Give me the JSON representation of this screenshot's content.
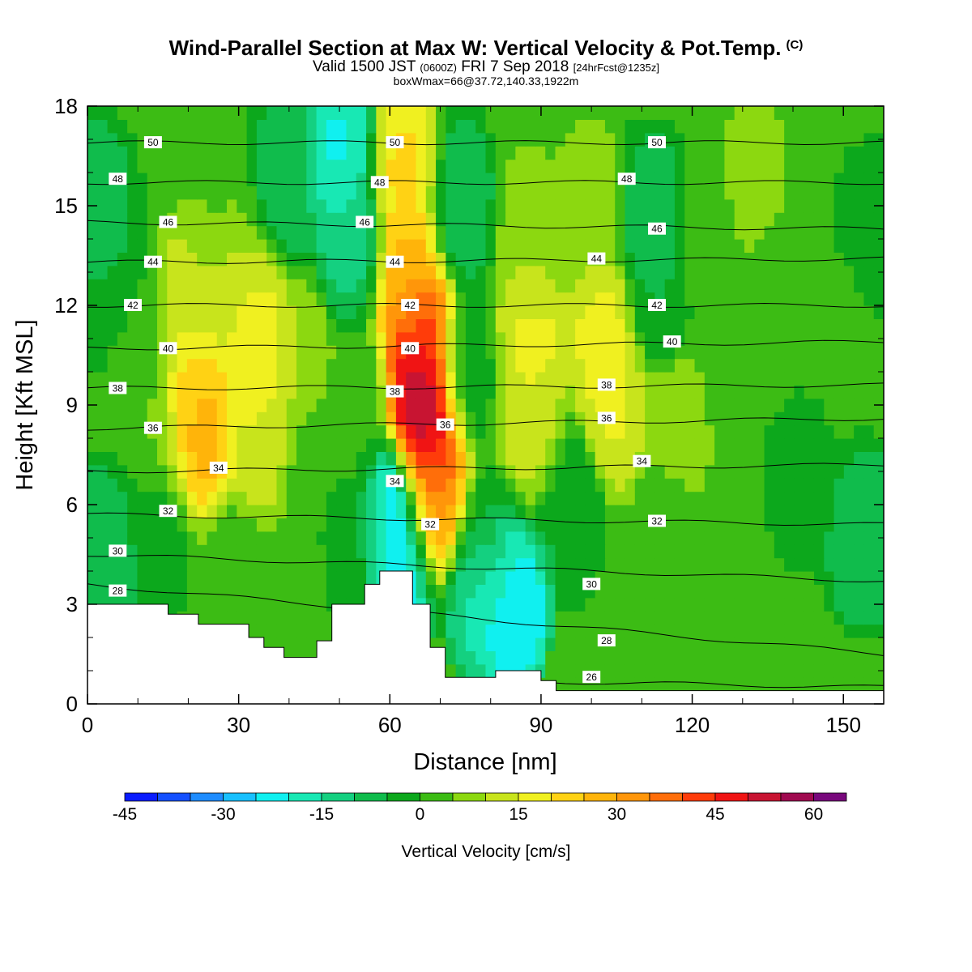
{
  "header": {
    "title": "Wind-Parallel Section at Max W: Vertical Velocity & Pot.Temp.",
    "title_mark": "(C)",
    "valid_prefix": "Valid 1500 JST",
    "valid_z": "(0600Z)",
    "valid_date": "FRI 7 Sep 2018",
    "valid_fcst": "[24hrFcst@1235z]",
    "box_info": "boxWmax=66@37.72,140.33,1922m"
  },
  "chart_data": {
    "type": "heatmap",
    "title": "Wind-Parallel Section at Max W: Vertical Velocity & Pot.Temp.",
    "xlabel": "Distance [nm]",
    "ylabel": "Height [Kft MSL]",
    "xlim": [
      0,
      158
    ],
    "ylim": [
      0,
      18
    ],
    "x_ticks": [
      0,
      30,
      60,
      90,
      120,
      150
    ],
    "y_ticks": [
      0,
      3,
      6,
      9,
      12,
      15,
      18
    ],
    "colorbar": {
      "label": "Vertical Velocity [cm/s]",
      "tick_values": [
        -45,
        -30,
        -15,
        0,
        15,
        30,
        45,
        60
      ],
      "tick_labels": [
        "-45",
        "-30",
        "-15",
        "0",
        "15",
        "30",
        "45",
        "60"
      ],
      "bin_edges": [
        -45,
        -40,
        -35,
        -30,
        -25,
        -20,
        -15,
        -10,
        -5,
        0,
        5,
        10,
        15,
        20,
        25,
        30,
        35,
        40,
        45,
        50,
        55,
        60,
        65
      ],
      "colors": [
        "#0a1cff",
        "#1450ff",
        "#1e8cff",
        "#18c0ff",
        "#10f0f0",
        "#18e8b4",
        "#14d080",
        "#10bc4c",
        "#0ca81c",
        "#3cbc14",
        "#8cd810",
        "#c8e41c",
        "#f0f020",
        "#ffd214",
        "#ffb40a",
        "#ff960a",
        "#ff6e0a",
        "#ff3c0a",
        "#f01414",
        "#c81432",
        "#a00a50",
        "#78087c",
        "#5a0a9c"
      ]
    },
    "vertical_velocity_cells": [
      {
        "x": 2,
        "y": 15,
        "w": -8
      },
      {
        "x": 5,
        "y": 13,
        "w": -5
      },
      {
        "x": 10,
        "y": 11,
        "w": 2
      },
      {
        "x": 14,
        "y": 8,
        "w": 5
      },
      {
        "x": 20,
        "y": 12,
        "w": 14
      },
      {
        "x": 21,
        "y": 9,
        "w": 24
      },
      {
        "x": 22,
        "y": 8,
        "w": 30
      },
      {
        "x": 14,
        "y": 5.5,
        "w": -3
      },
      {
        "x": 3,
        "y": 4.5,
        "w": -10
      },
      {
        "x": 30,
        "y": 12,
        "w": 14
      },
      {
        "x": 34,
        "y": 10.5,
        "w": 21
      },
      {
        "x": 35,
        "y": 8,
        "w": 14
      },
      {
        "x": 26,
        "y": 15,
        "w": 5
      },
      {
        "x": 28,
        "y": 4,
        "w": 3
      },
      {
        "x": 40,
        "y": 16,
        "w": -9
      },
      {
        "x": 42,
        "y": 10.5,
        "w": 10
      },
      {
        "x": 45,
        "y": 7,
        "w": 0
      },
      {
        "x": 50,
        "y": 16.5,
        "w": -22
      },
      {
        "x": 52,
        "y": 14,
        "w": -12
      },
      {
        "x": 53,
        "y": 9,
        "w": 3
      },
      {
        "x": 55,
        "y": 5,
        "w": -2
      },
      {
        "x": 63,
        "y": 16,
        "w": 22
      },
      {
        "x": 64,
        "y": 13,
        "w": 28
      },
      {
        "x": 66,
        "y": 11,
        "w": 46
      },
      {
        "x": 67,
        "y": 9,
        "w": 63
      },
      {
        "x": 68,
        "y": 7,
        "w": 46
      },
      {
        "x": 69,
        "y": 6,
        "w": 30
      },
      {
        "x": 61,
        "y": 5.5,
        "w": -33
      },
      {
        "x": 62,
        "y": 4.5,
        "w": -24
      },
      {
        "x": 74,
        "y": 15,
        "w": -9
      },
      {
        "x": 75,
        "y": 10,
        "w": -3
      },
      {
        "x": 79,
        "y": 5,
        "w": 0
      },
      {
        "x": 78,
        "y": 3.5,
        "w": -18
      },
      {
        "x": 84,
        "y": 3,
        "w": -28
      },
      {
        "x": 82,
        "y": 4,
        "w": -20
      },
      {
        "x": 88,
        "y": 14,
        "w": 9
      },
      {
        "x": 88,
        "y": 11,
        "w": 17
      },
      {
        "x": 88,
        "y": 8,
        "w": 14
      },
      {
        "x": 95,
        "y": 6,
        "w": -5
      },
      {
        "x": 103,
        "y": 11,
        "w": 18
      },
      {
        "x": 105,
        "y": 9,
        "w": 16
      },
      {
        "x": 100,
        "y": 15,
        "w": 8
      },
      {
        "x": 112,
        "y": 14.5,
        "w": -10
      },
      {
        "x": 113,
        "y": 12,
        "w": -5
      },
      {
        "x": 117,
        "y": 8.5,
        "w": 10
      },
      {
        "x": 115,
        "y": 6,
        "w": 3
      },
      {
        "x": 122,
        "y": 14,
        "w": 3
      },
      {
        "x": 126,
        "y": 10,
        "w": 3
      },
      {
        "x": 132,
        "y": 16,
        "w": 7
      },
      {
        "x": 138,
        "y": 12,
        "w": 3
      },
      {
        "x": 142,
        "y": 7,
        "w": -2
      },
      {
        "x": 150,
        "y": 11,
        "w": 3
      },
      {
        "x": 154,
        "y": 5,
        "w": -10
      },
      {
        "x": 156,
        "y": 14,
        "w": -3
      }
    ],
    "background_w": 1,
    "potential_temperature_contours": [
      {
        "level": 26,
        "label": "26",
        "y_start": 0.9,
        "y_end": 0.5
      },
      {
        "level": 28,
        "label": "28",
        "y_start": 3.6,
        "y_end": 1.5
      },
      {
        "level": 30,
        "label": "30",
        "y_start": 4.5,
        "y_end": 3.7
      },
      {
        "level": 32,
        "label": "32",
        "y_start": 5.7,
        "y_end": 5.4
      },
      {
        "level": 34,
        "label": "34",
        "y_start": 7.0,
        "y_end": 7.2
      },
      {
        "level": 36,
        "label": "36",
        "y_start": 8.3,
        "y_end": 8.6
      },
      {
        "level": 38,
        "label": "38",
        "y_start": 9.5,
        "y_end": 9.6
      },
      {
        "level": 40,
        "label": "40",
        "y_start": 10.7,
        "y_end": 10.9
      },
      {
        "level": 42,
        "label": "42",
        "y_start": 12.0,
        "y_end": 12.0
      },
      {
        "level": 44,
        "label": "44",
        "y_start": 13.3,
        "y_end": 13.4
      },
      {
        "level": 46,
        "label": "46",
        "y_start": 14.5,
        "y_end": 14.3
      },
      {
        "level": 48,
        "label": "48",
        "y_start": 15.7,
        "y_end": 15.7
      },
      {
        "level": 50,
        "label": "50",
        "y_start": 16.9,
        "y_end": 16.9
      }
    ],
    "contour_labels": [
      {
        "text": "50",
        "x": 13,
        "y": 16.9
      },
      {
        "text": "50",
        "x": 61,
        "y": 16.9
      },
      {
        "text": "50",
        "x": 113,
        "y": 16.9
      },
      {
        "text": "48",
        "x": 6,
        "y": 15.8
      },
      {
        "text": "48",
        "x": 58,
        "y": 15.7
      },
      {
        "text": "48",
        "x": 107,
        "y": 15.8
      },
      {
        "text": "46",
        "x": 16,
        "y": 14.5
      },
      {
        "text": "46",
        "x": 55,
        "y": 14.5
      },
      {
        "text": "46",
        "x": 113,
        "y": 14.3
      },
      {
        "text": "44",
        "x": 13,
        "y": 13.3
      },
      {
        "text": "44",
        "x": 61,
        "y": 13.3
      },
      {
        "text": "44",
        "x": 101,
        "y": 13.4
      },
      {
        "text": "42",
        "x": 9,
        "y": 12.0
      },
      {
        "text": "42",
        "x": 64,
        "y": 12.0
      },
      {
        "text": "42",
        "x": 113,
        "y": 12.0
      },
      {
        "text": "40",
        "x": 16,
        "y": 10.7
      },
      {
        "text": "40",
        "x": 64,
        "y": 10.7
      },
      {
        "text": "40",
        "x": 116,
        "y": 10.9
      },
      {
        "text": "38",
        "x": 6,
        "y": 9.5
      },
      {
        "text": "38",
        "x": 61,
        "y": 9.4
      },
      {
        "text": "38",
        "x": 103,
        "y": 9.6
      },
      {
        "text": "36",
        "x": 13,
        "y": 8.3
      },
      {
        "text": "36",
        "x": 71,
        "y": 8.4
      },
      {
        "text": "36",
        "x": 103,
        "y": 8.6
      },
      {
        "text": "34",
        "x": 26,
        "y": 7.1
      },
      {
        "text": "34",
        "x": 61,
        "y": 6.7
      },
      {
        "text": "34",
        "x": 110,
        "y": 7.3
      },
      {
        "text": "32",
        "x": 16,
        "y": 5.8
      },
      {
        "text": "32",
        "x": 68,
        "y": 5.4
      },
      {
        "text": "32",
        "x": 113,
        "y": 5.5
      },
      {
        "text": "30",
        "x": 6,
        "y": 4.6
      },
      {
        "text": "30",
        "x": 100,
        "y": 3.6
      },
      {
        "text": "28",
        "x": 6,
        "y": 3.4
      },
      {
        "text": "28",
        "x": 103,
        "y": 1.9
      },
      {
        "text": "26",
        "x": 100,
        "y": 0.8
      }
    ],
    "terrain": [
      [
        0,
        3.0
      ],
      [
        16,
        3.0
      ],
      [
        16,
        2.7
      ],
      [
        22,
        2.7
      ],
      [
        22,
        2.4
      ],
      [
        32,
        2.4
      ],
      [
        32,
        2.0
      ],
      [
        35,
        2.0
      ],
      [
        35,
        1.7
      ],
      [
        39,
        1.7
      ],
      [
        39,
        1.4
      ],
      [
        45.5,
        1.4
      ],
      [
        45.5,
        1.9
      ],
      [
        48.5,
        1.9
      ],
      [
        48.5,
        3.0
      ],
      [
        55,
        3.0
      ],
      [
        55,
        3.6
      ],
      [
        58,
        3.6
      ],
      [
        58,
        4.0
      ],
      [
        64.5,
        4.0
      ],
      [
        64.5,
        3.0
      ],
      [
        68,
        3.0
      ],
      [
        68,
        1.7
      ],
      [
        71,
        1.7
      ],
      [
        71,
        0.8
      ],
      [
        81,
        0.8
      ],
      [
        81,
        1.0
      ],
      [
        90,
        1.0
      ],
      [
        90,
        0.7
      ],
      [
        93,
        0.7
      ],
      [
        93,
        0.4
      ],
      [
        158,
        0.4
      ]
    ]
  }
}
